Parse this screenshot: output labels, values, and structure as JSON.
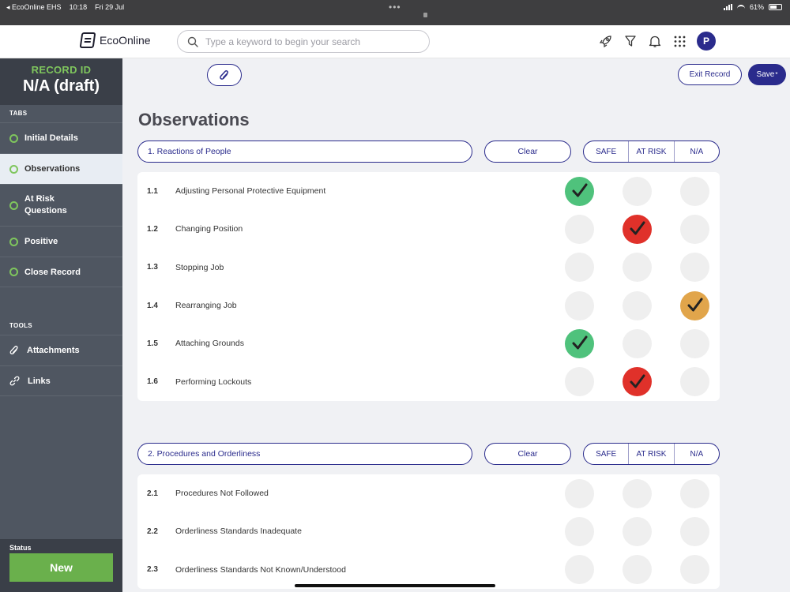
{
  "status_bar": {
    "app": "◂ EcoOnline EHS",
    "time": "10:18",
    "date": "Fri 29 Jul",
    "battery": "61%"
  },
  "header": {
    "brand": "EcoOnline",
    "search_placeholder": "Type a keyword to begin your search",
    "avatar_initial": "P",
    "icons": [
      "rocket-icon",
      "filter-icon",
      "bell-icon",
      "apps-grid-icon"
    ]
  },
  "sidebar": {
    "record_label": "RECORD ID",
    "record_value": "N/A (draft)",
    "tabs_heading": "TABS",
    "tabs": [
      {
        "label": "Initial Details",
        "active": false
      },
      {
        "label": "Observations",
        "active": true
      },
      {
        "label": "At Risk Questions",
        "active": false
      },
      {
        "label": "Positive",
        "active": false
      },
      {
        "label": "Close Record",
        "active": false
      }
    ],
    "tools_heading": "TOOLS",
    "tools": [
      {
        "label": "Attachments",
        "icon": "paperclip-icon"
      },
      {
        "label": "Links",
        "icon": "link-icon"
      }
    ],
    "status_label": "Status",
    "status_value": "New"
  },
  "toolbar": {
    "exit_label": "Exit Record",
    "save_label": "Save",
    "save_marker": "*"
  },
  "page_title": "Observations",
  "colors": {
    "brand": "#2a2b8c",
    "safe": "#4fc27c",
    "at_risk": "#e0312a",
    "na": "#e1a54b",
    "sidebar": "#4f5661",
    "status_new": "#6ab04c"
  },
  "sections": [
    {
      "title": "1. Reactions of People",
      "clear_label": "Clear",
      "options": [
        "SAFE",
        "AT RISK",
        "N/A"
      ],
      "items": [
        {
          "num": "1.1",
          "label": "Adjusting Personal Protective Equipment",
          "selected": "SAFE"
        },
        {
          "num": "1.2",
          "label": "Changing Position",
          "selected": "AT RISK"
        },
        {
          "num": "1.3",
          "label": "Stopping Job",
          "selected": ""
        },
        {
          "num": "1.4",
          "label": "Rearranging Job",
          "selected": "N/A"
        },
        {
          "num": "1.5",
          "label": "Attaching Grounds",
          "selected": "SAFE"
        },
        {
          "num": "1.6",
          "label": "Performing Lockouts",
          "selected": "AT RISK"
        }
      ]
    },
    {
      "title": "2. Procedures and Orderliness",
      "clear_label": "Clear",
      "options": [
        "SAFE",
        "AT RISK",
        "N/A"
      ],
      "items": [
        {
          "num": "2.1",
          "label": "Procedures Not Followed",
          "selected": ""
        },
        {
          "num": "2.2",
          "label": "Orderliness Standards Inadequate",
          "selected": ""
        },
        {
          "num": "2.3",
          "label": "Orderliness Standards Not Known/Understood",
          "selected": ""
        }
      ]
    }
  ]
}
